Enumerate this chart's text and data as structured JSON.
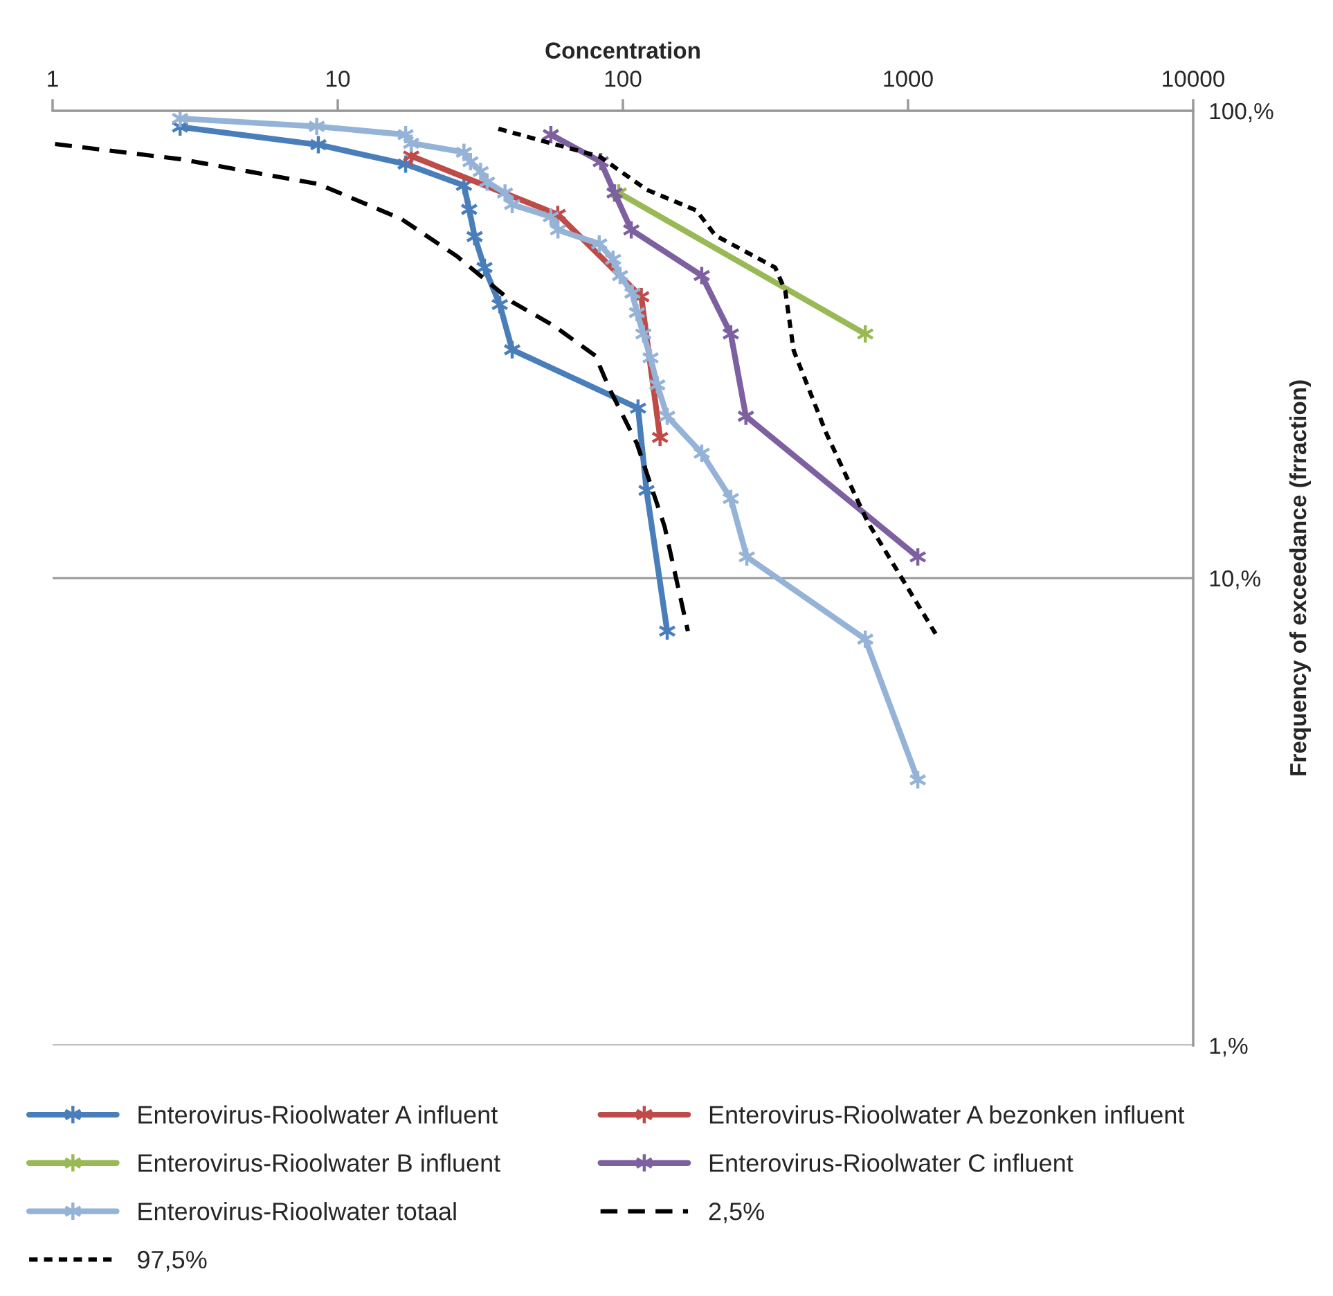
{
  "chart_data": {
    "type": "line",
    "xlabel": "Concentration",
    "ylabel": "Frequency of exceedance (frraction)",
    "log": "xy",
    "xlim": [
      1,
      10000
    ],
    "xticks": [
      1,
      10,
      100,
      1000,
      10000
    ],
    "ylim": [
      1,
      100
    ],
    "yticks": [
      {
        "value": 1,
        "label": "1,%"
      },
      {
        "value": 10,
        "label": "10,%"
      },
      {
        "value": 100,
        "label": "100,%"
      }
    ],
    "grid": "y",
    "legend": "bottom",
    "marker": "cross",
    "series": [
      {
        "name": "Enterovirus-Rioolwater A influent",
        "color": "#4a7ebb",
        "x": [
          2.8,
          8.55,
          17.3,
          27.7,
          28.9,
          30.2,
          32.7,
          37.0,
          40.9,
          113,
          121,
          143
        ],
        "values": [
          92.3,
          84.6,
          76.9,
          69.2,
          61.5,
          53.8,
          46.2,
          38.5,
          30.8,
          23.1,
          15.4,
          7.7
        ]
      },
      {
        "name": "Enterovirus-Rioolwater A bezonken influent",
        "color": "#be4b48",
        "x": [
          18.1,
          59.1,
          116,
          135
        ],
        "values": [
          80,
          60,
          40,
          20
        ]
      },
      {
        "name": "Enterovirus-Rioolwater B influent",
        "color": "#98b954",
        "x": [
          96.7,
          708
        ],
        "values": [
          66.7,
          33.3
        ]
      },
      {
        "name": "Enterovirus-Rioolwater C influent",
        "color": "#7d60a0",
        "x": [
          55.9,
          83.6,
          93.5,
          107,
          189,
          239,
          270,
          1082
        ],
        "values": [
          88.9,
          77.8,
          66.7,
          55.6,
          44.4,
          33.3,
          22.2,
          11.1
        ]
      },
      {
        "name": "Enterovirus-Rioolwater totaal",
        "color": "#95b3d7",
        "x": [
          2.8,
          8.44,
          17.3,
          18.1,
          27.7,
          29.2,
          31.7,
          33.4,
          38.6,
          40.9,
          55.9,
          59.2,
          82.6,
          92.4,
          97.8,
          108,
          112,
          118,
          125,
          132,
          143,
          189,
          239,
          272,
          708,
          1082
        ],
        "values": [
          96.3,
          92.6,
          88.9,
          85.2,
          81.5,
          77.8,
          74.1,
          70.4,
          66.7,
          63.0,
          59.3,
          55.6,
          51.9,
          48.1,
          44.4,
          40.7,
          37.0,
          33.3,
          29.6,
          25.9,
          22.2,
          18.5,
          14.8,
          11.1,
          7.4,
          3.7
        ]
      },
      {
        "name": "2,5%",
        "color": "#000000",
        "line_style": "dashed",
        "marker": "none",
        "x": [
          1.02,
          2.8,
          8.55,
          16.7,
          26.1,
          40.9,
          57.1,
          80.1,
          89.5,
          112,
          140,
          169
        ],
        "values": [
          84.9,
          78.8,
          69.7,
          58.7,
          48.9,
          39.0,
          34.7,
          29.9,
          25.5,
          19.4,
          12.9,
          7.7
        ]
      },
      {
        "name": "97,5%",
        "color": "#000000",
        "line_style": "dotted",
        "marker": "none",
        "x": [
          36.6,
          82.9,
          121,
          181,
          211,
          342,
          371,
          397,
          517,
          721,
          1249
        ],
        "values": [
          91.5,
          79.8,
          67.8,
          61.2,
          54.1,
          46.2,
          41.2,
          30.7,
          20.4,
          13.2,
          7.6
        ]
      }
    ]
  }
}
